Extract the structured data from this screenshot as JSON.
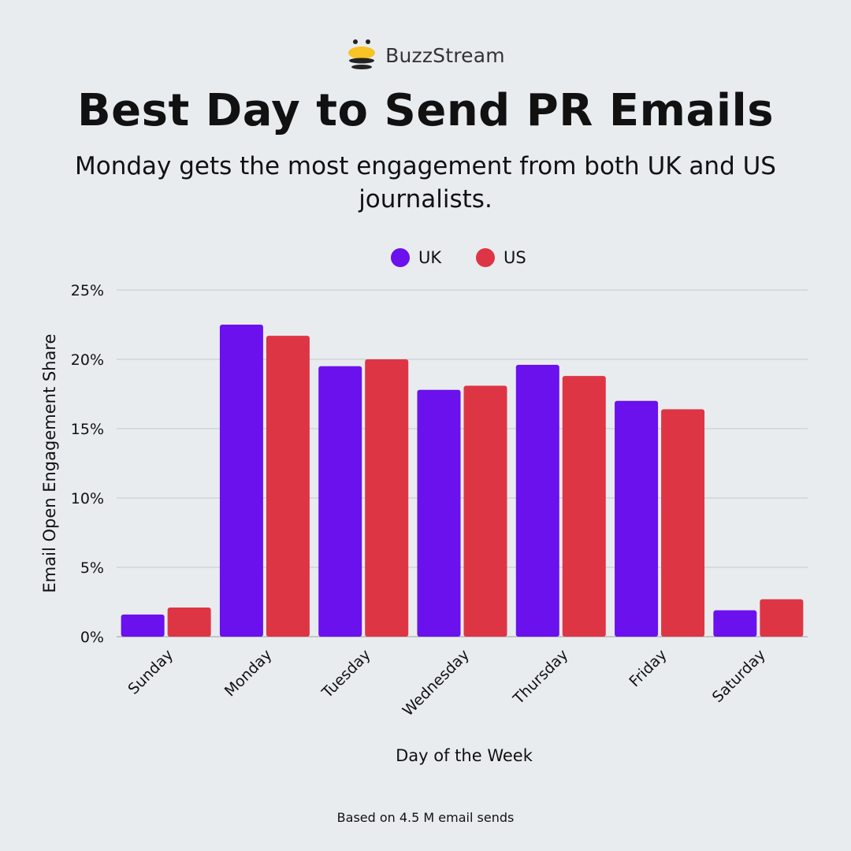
{
  "brand": {
    "name": "BuzzStream",
    "logo_icon": "bee-icon"
  },
  "title": "Best Day to Send PR Emails",
  "subtitle": "Monday gets the most engagement from both UK and US journalists.",
  "footnote": "Based on 4.5 M email sends",
  "chart_data": {
    "type": "bar",
    "categories": [
      "Sunday",
      "Monday",
      "Tuesday",
      "Wednesday",
      "Thursday",
      "Friday",
      "Saturday"
    ],
    "series": [
      {
        "name": "UK",
        "color": "#6a11ee",
        "values": [
          1.6,
          22.5,
          19.5,
          17.8,
          19.6,
          17.0,
          1.9
        ]
      },
      {
        "name": "US",
        "color": "#de3545",
        "values": [
          2.1,
          21.7,
          20.0,
          18.1,
          18.8,
          16.4,
          2.7
        ]
      }
    ],
    "xlabel": "Day of the Week",
    "ylabel": "Email Open Engagement Share",
    "ylim": [
      0,
      25
    ],
    "yticks": [
      0,
      5,
      10,
      15,
      20,
      25
    ],
    "ytick_labels": [
      "0%",
      "5%",
      "10%",
      "15%",
      "20%",
      "25%"
    ],
    "grid": true,
    "legend_position": "top-center"
  }
}
